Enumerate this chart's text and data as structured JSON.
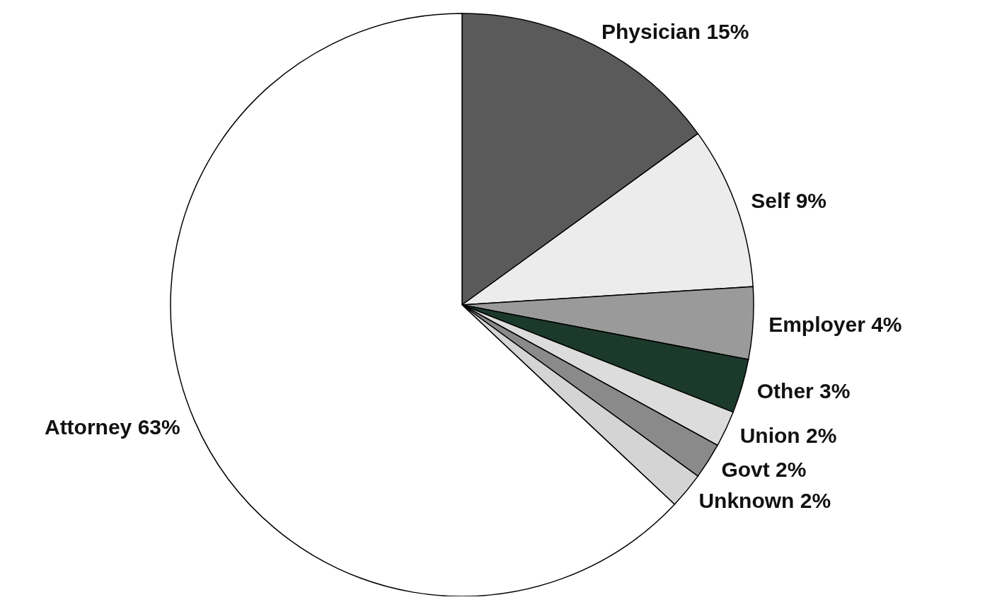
{
  "chart_data": {
    "type": "pie",
    "categories": [
      "Physician",
      "Self",
      "Employer",
      "Other",
      "Union",
      "Govt",
      "Unknown",
      "Attorney"
    ],
    "values": [
      15,
      9,
      4,
      3,
      2,
      2,
      2,
      63
    ],
    "value_labels": [
      "15%",
      "9%",
      "4%",
      "3%",
      "2%",
      "2%",
      "2%",
      "63%"
    ],
    "colors": [
      "#5a5a5a",
      "#ececec",
      "#9a9a9a",
      "#1c3a2c",
      "#dcdcdc",
      "#8a8a8a",
      "#d4d4d4",
      "#ffffff"
    ]
  }
}
